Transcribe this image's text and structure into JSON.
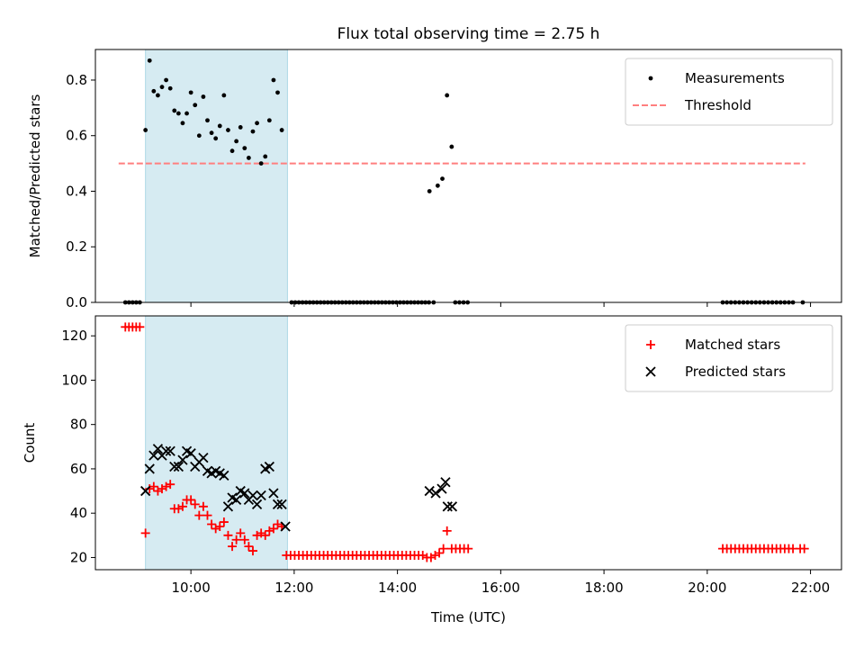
{
  "chart_data": [
    {
      "type": "scatter",
      "title": "Flux total observing time = 2.75 h",
      "xlabel": "",
      "ylabel": "Matched/Predicted stars",
      "x_unit": "hours UTC",
      "xlim": [
        8.15,
        22.6
      ],
      "ylim": [
        0,
        0.91
      ],
      "yticks": [
        "0.0",
        "0.2",
        "0.4",
        "0.6",
        "0.8"
      ],
      "ytick_values": [
        0,
        0.2,
        0.4,
        0.6,
        0.8
      ],
      "xticks": [
        "10:00",
        "12:00",
        "14:00",
        "16:00",
        "18:00",
        "20:00",
        "22:00"
      ],
      "xtick_values": [
        10,
        12,
        14,
        16,
        18,
        20,
        22
      ],
      "shaded_interval": [
        9.12,
        11.87
      ],
      "legend_position": "top-right",
      "threshold": {
        "name": "Threshold",
        "y": 0.5,
        "x_range": [
          8.6,
          21.9
        ],
        "color": "#ff7f7f"
      },
      "series": [
        {
          "name": "Measurements",
          "color": "#000000",
          "points": [
            [
              8.73,
              0
            ],
            [
              8.8,
              0
            ],
            [
              8.87,
              0
            ],
            [
              8.94,
              0
            ],
            [
              9.01,
              0
            ],
            [
              9.12,
              0.62
            ],
            [
              9.2,
              0.87
            ],
            [
              9.28,
              0.76
            ],
            [
              9.36,
              0.745
            ],
            [
              9.44,
              0.775
            ],
            [
              9.52,
              0.8
            ],
            [
              9.6,
              0.77
            ],
            [
              9.68,
              0.69
            ],
            [
              9.76,
              0.68
            ],
            [
              9.84,
              0.645
            ],
            [
              9.92,
              0.68
            ],
            [
              10.0,
              0.755
            ],
            [
              10.08,
              0.71
            ],
            [
              10.16,
              0.6
            ],
            [
              10.24,
              0.74
            ],
            [
              10.32,
              0.655
            ],
            [
              10.4,
              0.61
            ],
            [
              10.48,
              0.59
            ],
            [
              10.56,
              0.635
            ],
            [
              10.64,
              0.745
            ],
            [
              10.72,
              0.62
            ],
            [
              10.8,
              0.545
            ],
            [
              10.88,
              0.58
            ],
            [
              10.96,
              0.63
            ],
            [
              11.04,
              0.555
            ],
            [
              11.12,
              0.52
            ],
            [
              11.2,
              0.615
            ],
            [
              11.28,
              0.645
            ],
            [
              11.36,
              0.5
            ],
            [
              11.44,
              0.525
            ],
            [
              11.52,
              0.655
            ],
            [
              11.6,
              0.8
            ],
            [
              11.68,
              0.755
            ],
            [
              11.76,
              0.62
            ],
            [
              11.95,
              0
            ],
            [
              12.02,
              0
            ],
            [
              12.09,
              0
            ],
            [
              12.16,
              0
            ],
            [
              12.23,
              0
            ],
            [
              12.3,
              0
            ],
            [
              12.37,
              0
            ],
            [
              12.44,
              0
            ],
            [
              12.51,
              0
            ],
            [
              12.58,
              0
            ],
            [
              12.65,
              0
            ],
            [
              12.72,
              0
            ],
            [
              12.79,
              0
            ],
            [
              12.86,
              0
            ],
            [
              12.93,
              0
            ],
            [
              13.0,
              0
            ],
            [
              13.07,
              0
            ],
            [
              13.14,
              0
            ],
            [
              13.21,
              0
            ],
            [
              13.28,
              0
            ],
            [
              13.35,
              0
            ],
            [
              13.42,
              0
            ],
            [
              13.49,
              0
            ],
            [
              13.56,
              0
            ],
            [
              13.63,
              0
            ],
            [
              13.7,
              0
            ],
            [
              13.77,
              0
            ],
            [
              13.84,
              0
            ],
            [
              13.91,
              0
            ],
            [
              13.98,
              0
            ],
            [
              14.05,
              0
            ],
            [
              14.12,
              0
            ],
            [
              14.19,
              0
            ],
            [
              14.26,
              0
            ],
            [
              14.33,
              0
            ],
            [
              14.4,
              0
            ],
            [
              14.47,
              0
            ],
            [
              14.54,
              0
            ],
            [
              14.61,
              0
            ],
            [
              14.62,
              0.4
            ],
            [
              14.7,
              0
            ],
            [
              14.78,
              0.42
            ],
            [
              14.87,
              0.445
            ],
            [
              14.96,
              0.745
            ],
            [
              15.05,
              0.56
            ],
            [
              15.12,
              0
            ],
            [
              15.2,
              0
            ],
            [
              15.28,
              0
            ],
            [
              15.36,
              0
            ],
            [
              20.3,
              0
            ],
            [
              20.38,
              0
            ],
            [
              20.46,
              0
            ],
            [
              20.54,
              0
            ],
            [
              20.62,
              0
            ],
            [
              20.7,
              0
            ],
            [
              20.78,
              0
            ],
            [
              20.86,
              0
            ],
            [
              20.94,
              0
            ],
            [
              21.02,
              0
            ],
            [
              21.1,
              0
            ],
            [
              21.18,
              0
            ],
            [
              21.26,
              0
            ],
            [
              21.34,
              0
            ],
            [
              21.42,
              0
            ],
            [
              21.5,
              0
            ],
            [
              21.58,
              0
            ],
            [
              21.66,
              0
            ],
            [
              21.85,
              0
            ]
          ]
        }
      ]
    },
    {
      "type": "scatter",
      "title": "",
      "xlabel": "Time (UTC)",
      "ylabel": "Count",
      "x_unit": "hours UTC",
      "xlim": [
        8.15,
        22.6
      ],
      "ylim": [
        14.5,
        129
      ],
      "yticks": [
        "20",
        "40",
        "60",
        "80",
        "100",
        "120"
      ],
      "ytick_values": [
        20,
        40,
        60,
        80,
        100,
        120
      ],
      "xticks": [
        "10:00",
        "12:00",
        "14:00",
        "16:00",
        "18:00",
        "20:00",
        "22:00"
      ],
      "xtick_values": [
        10,
        12,
        14,
        16,
        18,
        20,
        22
      ],
      "shaded_interval": [
        9.12,
        11.87
      ],
      "legend_position": "top-right",
      "series": [
        {
          "name": "Matched stars",
          "marker": "plus",
          "color": "#ff0000",
          "points": [
            [
              8.73,
              124
            ],
            [
              8.8,
              124
            ],
            [
              8.87,
              124
            ],
            [
              8.94,
              124
            ],
            [
              9.01,
              124
            ],
            [
              9.12,
              31
            ],
            [
              9.2,
              51
            ],
            [
              9.28,
              52
            ],
            [
              9.36,
              50
            ],
            [
              9.44,
              51
            ],
            [
              9.52,
              52
            ],
            [
              9.6,
              53
            ],
            [
              9.68,
              42
            ],
            [
              9.76,
              42
            ],
            [
              9.84,
              43
            ],
            [
              9.92,
              46
            ],
            [
              10.0,
              46
            ],
            [
              10.08,
              44
            ],
            [
              10.16,
              39
            ],
            [
              10.24,
              43
            ],
            [
              10.32,
              39
            ],
            [
              10.4,
              35
            ],
            [
              10.48,
              33
            ],
            [
              10.56,
              34
            ],
            [
              10.64,
              36
            ],
            [
              10.72,
              30
            ],
            [
              10.8,
              25
            ],
            [
              10.88,
              28
            ],
            [
              10.96,
              31
            ],
            [
              11.04,
              28
            ],
            [
              11.12,
              25
            ],
            [
              11.2,
              23
            ],
            [
              11.28,
              30
            ],
            [
              11.36,
              31
            ],
            [
              11.44,
              30
            ],
            [
              11.52,
              32
            ],
            [
              11.6,
              33
            ],
            [
              11.68,
              35
            ],
            [
              11.76,
              34
            ],
            [
              11.85,
              21
            ],
            [
              11.93,
              21
            ],
            [
              12.01,
              21
            ],
            [
              12.09,
              21
            ],
            [
              12.17,
              21
            ],
            [
              12.25,
              21
            ],
            [
              12.33,
              21
            ],
            [
              12.41,
              21
            ],
            [
              12.49,
              21
            ],
            [
              12.57,
              21
            ],
            [
              12.65,
              21
            ],
            [
              12.73,
              21
            ],
            [
              12.81,
              21
            ],
            [
              12.89,
              21
            ],
            [
              12.97,
              21
            ],
            [
              13.05,
              21
            ],
            [
              13.13,
              21
            ],
            [
              13.21,
              21
            ],
            [
              13.29,
              21
            ],
            [
              13.37,
              21
            ],
            [
              13.45,
              21
            ],
            [
              13.53,
              21
            ],
            [
              13.61,
              21
            ],
            [
              13.69,
              21
            ],
            [
              13.77,
              21
            ],
            [
              13.85,
              21
            ],
            [
              13.93,
              21
            ],
            [
              14.01,
              21
            ],
            [
              14.09,
              21
            ],
            [
              14.17,
              21
            ],
            [
              14.25,
              21
            ],
            [
              14.33,
              21
            ],
            [
              14.41,
              21
            ],
            [
              14.49,
              21
            ],
            [
              14.57,
              20
            ],
            [
              14.65,
              20
            ],
            [
              14.73,
              21
            ],
            [
              14.81,
              22
            ],
            [
              14.89,
              24
            ],
            [
              14.96,
              32
            ],
            [
              15.05,
              24
            ],
            [
              15.13,
              24
            ],
            [
              15.21,
              24
            ],
            [
              15.29,
              24
            ],
            [
              15.37,
              24
            ],
            [
              20.3,
              24
            ],
            [
              20.38,
              24
            ],
            [
              20.46,
              24
            ],
            [
              20.54,
              24
            ],
            [
              20.62,
              24
            ],
            [
              20.7,
              24
            ],
            [
              20.78,
              24
            ],
            [
              20.86,
              24
            ],
            [
              20.94,
              24
            ],
            [
              21.02,
              24
            ],
            [
              21.1,
              24
            ],
            [
              21.18,
              24
            ],
            [
              21.26,
              24
            ],
            [
              21.34,
              24
            ],
            [
              21.42,
              24
            ],
            [
              21.5,
              24
            ],
            [
              21.58,
              24
            ],
            [
              21.66,
              24
            ],
            [
              21.8,
              24
            ],
            [
              21.88,
              24
            ]
          ]
        },
        {
          "name": "Predicted stars",
          "marker": "x",
          "color": "#000000",
          "points": [
            [
              9.12,
              50
            ],
            [
              9.2,
              60
            ],
            [
              9.28,
              66
            ],
            [
              9.36,
              69
            ],
            [
              9.44,
              66
            ],
            [
              9.52,
              68
            ],
            [
              9.6,
              68
            ],
            [
              9.68,
              61
            ],
            [
              9.76,
              61
            ],
            [
              9.84,
              64
            ],
            [
              9.92,
              68
            ],
            [
              10.0,
              67
            ],
            [
              10.08,
              61
            ],
            [
              10.16,
              63
            ],
            [
              10.24,
              65
            ],
            [
              10.32,
              59
            ],
            [
              10.4,
              58
            ],
            [
              10.48,
              59
            ],
            [
              10.56,
              58
            ],
            [
              10.64,
              57
            ],
            [
              10.72,
              43
            ],
            [
              10.8,
              47
            ],
            [
              10.88,
              46
            ],
            [
              10.96,
              50
            ],
            [
              11.04,
              49
            ],
            [
              11.12,
              46
            ],
            [
              11.2,
              48
            ],
            [
              11.28,
              44
            ],
            [
              11.36,
              48
            ],
            [
              11.44,
              60
            ],
            [
              11.52,
              61
            ],
            [
              11.6,
              49
            ],
            [
              11.68,
              44
            ],
            [
              11.76,
              44
            ],
            [
              11.83,
              34
            ],
            [
              14.62,
              50
            ],
            [
              14.74,
              49
            ],
            [
              14.86,
              51
            ],
            [
              14.93,
              54
            ],
            [
              14.97,
              43
            ],
            [
              15.06,
              43
            ]
          ]
        }
      ]
    }
  ]
}
